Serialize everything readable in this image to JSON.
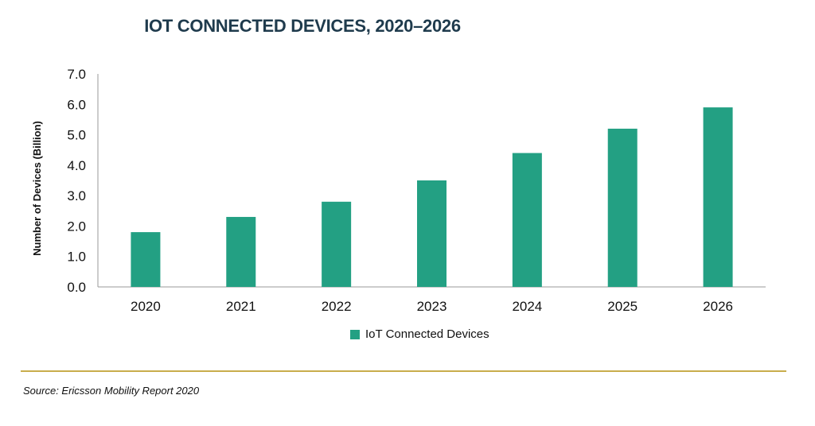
{
  "colors": {
    "bar": "#23a083",
    "title": "#1f3b4d",
    "divider": "#c8ad4c",
    "axis": "#9a9a9a"
  },
  "chart_data": {
    "type": "bar",
    "title": "IOT CONNECTED DEVICES, 2020–2026",
    "xlabel": "",
    "ylabel": "Number of Devices (Billion)",
    "categories": [
      "2020",
      "2021",
      "2022",
      "2023",
      "2024",
      "2025",
      "2026"
    ],
    "series": [
      {
        "name": "IoT Connected Devices",
        "values": [
          1.8,
          2.3,
          2.8,
          3.5,
          4.4,
          5.2,
          5.9
        ]
      }
    ],
    "ylim": [
      0,
      7
    ],
    "yticks": [
      "0.0",
      "1.0",
      "2.0",
      "3.0",
      "4.0",
      "5.0",
      "6.0",
      "7.0"
    ],
    "grid": false,
    "legend_position": "bottom"
  },
  "source": "Source: Ericsson Mobility Report 2020"
}
